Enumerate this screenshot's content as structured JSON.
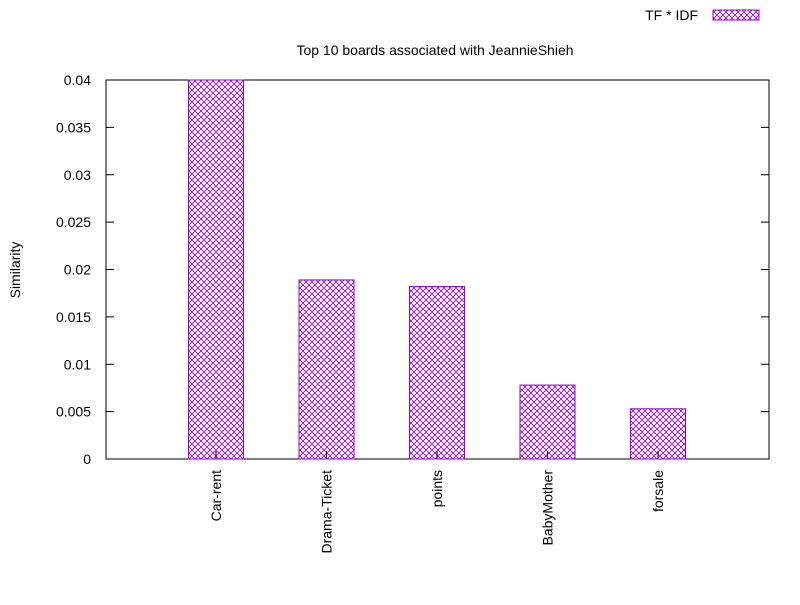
{
  "chart_data": {
    "type": "bar",
    "title": "Top 10 boards associated with JeannieShieh",
    "xlabel": "",
    "ylabel": "Similarity",
    "categories": [
      "Car-rent",
      "Drama-Ticket",
      "points",
      "BabyMother",
      "forsale"
    ],
    "series": [
      {
        "name": "TF * IDF",
        "values": [
          0.04,
          0.0189,
          0.0182,
          0.0078,
          0.0053
        ],
        "color": "#9400d3",
        "pattern": "crosshatch"
      }
    ],
    "ylim": [
      0,
      0.04
    ],
    "yticks": [
      "0",
      "0.005",
      "0.01",
      "0.015",
      "0.02",
      "0.025",
      "0.03",
      "0.035",
      "0.04"
    ],
    "ytick_values": [
      0,
      0.005,
      0.01,
      0.015,
      0.02,
      0.025,
      0.03,
      0.035,
      0.04
    ],
    "grid": false,
    "legend_position": "top-right"
  }
}
